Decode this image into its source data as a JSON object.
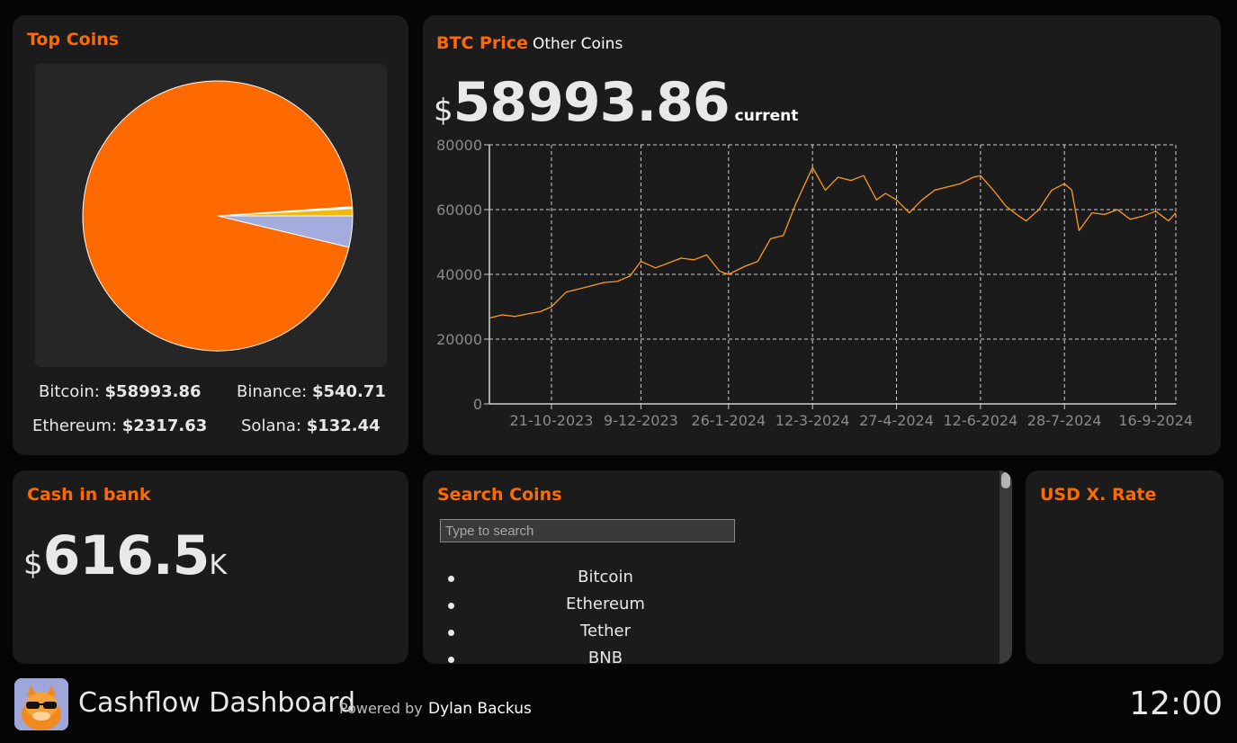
{
  "top_coins": {
    "title": "Top Coins",
    "prices": [
      {
        "name": "Bitcoin: ",
        "price": "$58993.86"
      },
      {
        "name": "Binance: ",
        "price": "$540.71"
      },
      {
        "name": "Ethereum: ",
        "price": "$2317.63"
      },
      {
        "name": "Solana: ",
        "price": "$132.44"
      }
    ],
    "pie_colors": {
      "bitcoin": "#ff6a00",
      "ethereum": "#a4abdd",
      "binance": "#f0b90b",
      "solana": "#ffffff"
    }
  },
  "btc": {
    "tab_active": "BTC Price",
    "tab_other": "Other Coins",
    "currency_symbol": "$",
    "current_price": "58993.86",
    "current_label": "current",
    "line_color": "#ff9a1a"
  },
  "cash": {
    "title": "Cash in bank",
    "currency_symbol": "$",
    "value": "616.5",
    "unit": "K"
  },
  "search": {
    "title": "Search Coins",
    "placeholder": "Type to search",
    "coins": [
      "Bitcoin",
      "Ethereum",
      "Tether",
      "BNB"
    ]
  },
  "usd": {
    "title": "USD X. Rate"
  },
  "footer": {
    "app_title": "Cashflow Dashboard",
    "powered_by": "Powered by",
    "author": "Dylan Backus",
    "clock": "12:00"
  },
  "chart_data": [
    {
      "type": "pie",
      "labels": [
        "Bitcoin",
        "Ethereum",
        "Binance",
        "Solana"
      ],
      "values": [
        58993.86,
        2317.63,
        540.71,
        132.44
      ]
    },
    {
      "type": "line",
      "title": "",
      "xlabel": "",
      "ylabel": "",
      "x_tick_labels": [
        "21-10-2023",
        "9-12-2023",
        "26-1-2024",
        "12-3-2024",
        "27-4-2024",
        "12-6-2024",
        "28-7-2024",
        "16-9-2024"
      ],
      "y_ticks": [
        0,
        20000,
        40000,
        60000,
        80000
      ],
      "ylim": [
        0,
        80000
      ],
      "xlim": [
        "2023-09-17",
        "2024-09-27"
      ],
      "grid": true,
      "series": [
        {
          "x": [
            "2023-09-17",
            "2023-09-24",
            "2023-10-01",
            "2023-10-08",
            "2023-10-15",
            "2023-10-21",
            "2023-10-29",
            "2023-11-05",
            "2023-11-12",
            "2023-11-19",
            "2023-11-26",
            "2023-12-03",
            "2023-12-09",
            "2023-12-17",
            "2023-12-24",
            "2023-12-31",
            "2024-01-07",
            "2024-01-14",
            "2024-01-21",
            "2024-01-26",
            "2024-02-04",
            "2024-02-11",
            "2024-02-18",
            "2024-02-25",
            "2024-03-03",
            "2024-03-12",
            "2024-03-19",
            "2024-03-26",
            "2024-04-02",
            "2024-04-09",
            "2024-04-16",
            "2024-04-21",
            "2024-04-27",
            "2024-05-04",
            "2024-05-11",
            "2024-05-18",
            "2024-05-25",
            "2024-06-01",
            "2024-06-08",
            "2024-06-12",
            "2024-06-19",
            "2024-06-26",
            "2024-07-03",
            "2024-07-07",
            "2024-07-14",
            "2024-07-21",
            "2024-07-28",
            "2024-08-01",
            "2024-08-05",
            "2024-08-12",
            "2024-08-19",
            "2024-08-26",
            "2024-09-02",
            "2024-09-09",
            "2024-09-16",
            "2024-09-23",
            "2024-09-27"
          ],
          "values": [
            26500,
            27500,
            27000,
            27800,
            28500,
            30000,
            34500,
            35500,
            36500,
            37500,
            37800,
            39500,
            44000,
            42000,
            43500,
            45000,
            44500,
            46000,
            41000,
            40000,
            42500,
            44000,
            51000,
            52000,
            62000,
            73000,
            66000,
            70000,
            69000,
            70500,
            63000,
            65000,
            63000,
            59000,
            63000,
            66000,
            67000,
            68000,
            70000,
            70500,
            66000,
            61000,
            58000,
            56500,
            60000,
            66000,
            68000,
            66000,
            53500,
            59000,
            58500,
            60000,
            57000,
            58000,
            59500,
            56500,
            58993
          ]
        }
      ]
    }
  ]
}
